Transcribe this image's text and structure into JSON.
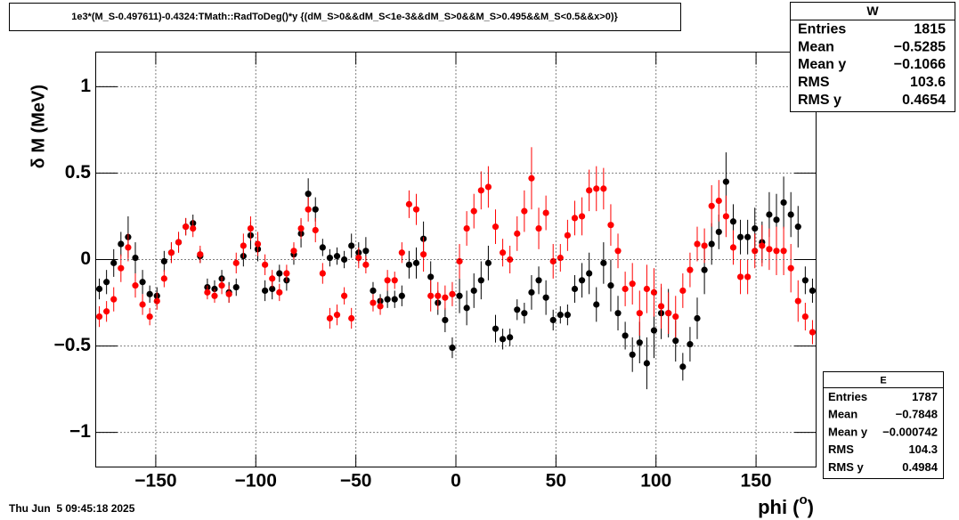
{
  "chart_data": {
    "type": "scatter",
    "title": "1e3*(M_S-0.497611)-0.4324:TMath::RadToDeg()*y {(dM_S>0&&dM_S<1e-3&&dM_S>0&&M_S>0.495&&M_S<0.5&&x>0)}",
    "ylabel": "δ M (MeV)",
    "xlabel": {
      "text": "phi (",
      "sup": "o",
      "end": ")"
    },
    "date": "Thu Jun  5 09:45:18 2025",
    "xlim": [
      -180,
      180
    ],
    "ylim": [
      -1.2,
      1.2
    ],
    "xticks": [
      {
        "value": -150,
        "label": "−150"
      },
      {
        "value": -100,
        "label": "−100"
      },
      {
        "value": -50,
        "label": "−50"
      },
      0,
      50,
      100,
      150
    ],
    "yticks": [
      {
        "value": -1,
        "label": "−1"
      },
      {
        "value": -0.5,
        "label": "−0.5"
      },
      0,
      0.5,
      1
    ],
    "grid": true,
    "x": [
      -178.2,
      -174.6,
      -171,
      -167.4,
      -163.8,
      -160.2,
      -156.6,
      -153,
      -149.4,
      -145.8,
      -142.2,
      -138.6,
      -135,
      -131.4,
      -127.8,
      -124.2,
      -120.6,
      -117,
      -113.4,
      -109.8,
      -106.2,
      -102.6,
      -99,
      -95.4,
      -91.8,
      -88.2,
      -84.6,
      -81,
      -77.4,
      -73.8,
      -70.2,
      -66.6,
      -63,
      -59.4,
      -55.8,
      -52.2,
      -48.6,
      -45,
      -41.4,
      -37.8,
      -34.2,
      -30.6,
      -27,
      -23.4,
      -19.8,
      -16.2,
      -12.6,
      -9,
      -5.4,
      -1.8,
      1.8,
      5.4,
      9,
      12.6,
      16.2,
      19.8,
      23.4,
      27,
      30.6,
      34.2,
      37.8,
      41.4,
      45,
      48.6,
      52.2,
      55.8,
      59.4,
      63,
      66.6,
      70.2,
      73.8,
      77.4,
      81,
      84.6,
      88.2,
      91.8,
      95.4,
      99,
      102.6,
      106.2,
      109.8,
      113.4,
      117,
      120.6,
      124.2,
      127.8,
      131.4,
      135,
      138.6,
      142.2,
      145.8,
      149.4,
      153,
      156.6,
      160.2,
      163.8,
      167.4,
      171,
      174.6,
      178.2
    ],
    "series": [
      {
        "name": "W",
        "color": "#000000",
        "values": [
          -0.17,
          -0.13,
          -0.02,
          0.09,
          0.13,
          0.01,
          -0.13,
          -0.2,
          -0.21,
          -0.01,
          0.04,
          0.1,
          0.19,
          0.21,
          0.02,
          -0.16,
          -0.17,
          -0.11,
          -0.19,
          -0.16,
          0.02,
          0.14,
          0.06,
          -0.18,
          -0.17,
          -0.08,
          -0.12,
          0.03,
          0.15,
          0.38,
          0.29,
          0.07,
          0.01,
          0.02,
          0.0,
          0.08,
          0.04,
          0.05,
          -0.18,
          -0.24,
          -0.23,
          -0.23,
          -0.21,
          -0.03,
          -0.02,
          0.12,
          -0.1,
          -0.25,
          -0.35,
          -0.51,
          -0.21,
          -0.28,
          -0.18,
          -0.12,
          -0.02,
          -0.4,
          -0.46,
          -0.45,
          -0.29,
          -0.31,
          -0.19,
          -0.12,
          -0.22,
          -0.35,
          -0.32,
          -0.32,
          -0.17,
          -0.12,
          -0.08,
          -0.26,
          -0.02,
          -0.15,
          -0.31,
          -0.44,
          -0.55,
          -0.48,
          -0.6,
          -0.41,
          -0.31,
          -0.31,
          -0.47,
          -0.62,
          -0.49,
          -0.34,
          -0.06,
          0.09,
          0.16,
          0.45,
          0.22,
          0.13,
          0.13,
          0.18,
          0.1,
          0.26,
          0.23,
          0.33,
          0.26,
          0.19,
          -0.12,
          -0.18
        ],
        "errors": [
          0.06,
          0.07,
          0.08,
          0.07,
          0.12,
          0.09,
          0.07,
          0.05,
          0.05,
          0.06,
          0.06,
          0.06,
          0.05,
          0.05,
          0.04,
          0.05,
          0.05,
          0.05,
          0.06,
          0.05,
          0.06,
          0.08,
          0.07,
          0.06,
          0.06,
          0.05,
          0.06,
          0.06,
          0.08,
          0.09,
          0.07,
          0.05,
          0.05,
          0.05,
          0.05,
          0.07,
          0.06,
          0.08,
          0.05,
          0.04,
          0.05,
          0.05,
          0.06,
          0.08,
          0.09,
          0.1,
          0.09,
          0.07,
          0.07,
          0.06,
          0.1,
          0.1,
          0.1,
          0.11,
          0.1,
          0.08,
          0.06,
          0.05,
          0.06,
          0.06,
          0.1,
          0.08,
          0.1,
          0.06,
          0.05,
          0.06,
          0.08,
          0.1,
          0.12,
          0.1,
          0.12,
          0.15,
          0.1,
          0.08,
          0.1,
          0.12,
          0.15,
          0.16,
          0.15,
          0.14,
          0.12,
          0.08,
          0.1,
          0.12,
          0.14,
          0.12,
          0.1,
          0.17,
          0.1,
          0.1,
          0.1,
          0.12,
          0.12,
          0.13,
          0.15,
          0.15,
          0.13,
          0.12,
          0.08,
          0.07
        ],
        "stats": [
          [
            "Entries",
            "1815"
          ],
          [
            "Mean",
            "−0.5285"
          ],
          [
            "Mean y",
            "−0.1066"
          ],
          [
            "RMS",
            "103.6"
          ],
          [
            "RMS y",
            "0.4654"
          ]
        ]
      },
      {
        "name": "E",
        "color": "#ff0000",
        "values": [
          -0.33,
          -0.3,
          -0.23,
          -0.05,
          0.07,
          -0.15,
          -0.26,
          -0.33,
          -0.24,
          -0.11,
          0.04,
          0.1,
          0.19,
          0.18,
          0.03,
          -0.19,
          -0.21,
          -0.15,
          -0.2,
          -0.02,
          0.08,
          0.18,
          0.09,
          -0.03,
          -0.11,
          -0.19,
          -0.08,
          0.05,
          0.18,
          0.29,
          0.17,
          -0.08,
          -0.34,
          -0.32,
          -0.21,
          -0.34,
          0.01,
          -0.03,
          -0.25,
          -0.27,
          -0.12,
          -0.12,
          0.04,
          0.32,
          0.29,
          0.03,
          -0.21,
          -0.21,
          -0.22,
          -0.2,
          -0.01,
          0.18,
          0.28,
          0.4,
          0.42,
          0.19,
          0.04,
          0.0,
          0.15,
          0.28,
          0.47,
          0.18,
          0.27,
          -0.01,
          0.01,
          0.14,
          0.24,
          0.25,
          0.4,
          0.41,
          0.41,
          0.2,
          0.05,
          -0.17,
          -0.14,
          -0.31,
          -0.17,
          -0.19,
          -0.27,
          -0.31,
          -0.33,
          -0.18,
          -0.06,
          0.09,
          0.08,
          0.31,
          0.34,
          0.25,
          0.07,
          -0.1,
          -0.1,
          0.05,
          0.08,
          0.06,
          0.05,
          0.05,
          -0.05,
          -0.24,
          -0.33,
          -0.42
        ],
        "errors": [
          0.06,
          0.06,
          0.07,
          0.08,
          0.08,
          0.07,
          0.06,
          0.05,
          0.05,
          0.05,
          0.06,
          0.06,
          0.05,
          0.05,
          0.05,
          0.04,
          0.04,
          0.05,
          0.05,
          0.06,
          0.07,
          0.07,
          0.07,
          0.06,
          0.05,
          0.05,
          0.05,
          0.05,
          0.06,
          0.07,
          0.07,
          0.06,
          0.06,
          0.06,
          0.05,
          0.06,
          0.06,
          0.05,
          0.05,
          0.05,
          0.06,
          0.05,
          0.06,
          0.08,
          0.09,
          0.1,
          0.09,
          0.08,
          0.07,
          0.07,
          0.1,
          0.1,
          0.1,
          0.11,
          0.12,
          0.1,
          0.08,
          0.08,
          0.1,
          0.12,
          0.18,
          0.12,
          0.1,
          0.1,
          0.08,
          0.09,
          0.1,
          0.11,
          0.12,
          0.13,
          0.12,
          0.12,
          0.1,
          0.1,
          0.12,
          0.13,
          0.14,
          0.14,
          0.13,
          0.12,
          0.12,
          0.1,
          0.1,
          0.1,
          0.1,
          0.12,
          0.12,
          0.12,
          0.1,
          0.1,
          0.1,
          0.1,
          0.12,
          0.12,
          0.14,
          0.14,
          0.14,
          0.12,
          0.08,
          0.07
        ],
        "stats": [
          [
            "Entries",
            "1787"
          ],
          [
            "Mean",
            "−0.7848"
          ],
          [
            "Mean y",
            "−0.000742"
          ],
          [
            "RMS",
            "104.3"
          ],
          [
            "RMS y",
            "0.4984"
          ]
        ]
      }
    ]
  }
}
